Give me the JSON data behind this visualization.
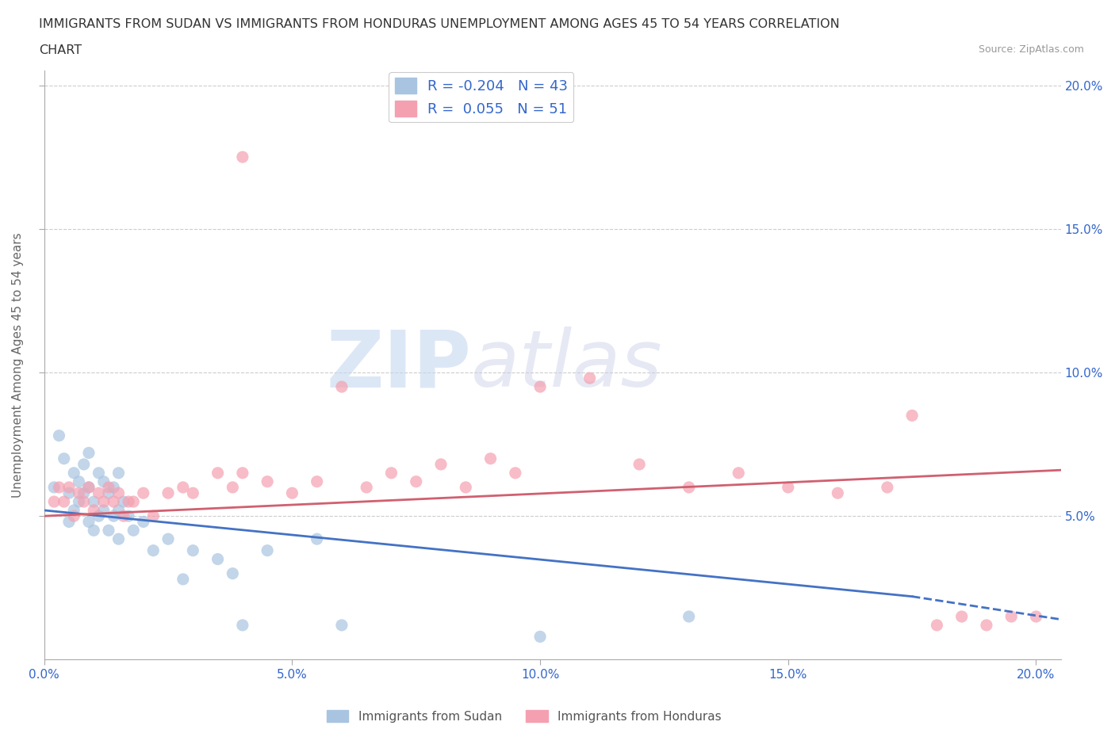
{
  "title_line1": "IMMIGRANTS FROM SUDAN VS IMMIGRANTS FROM HONDURAS UNEMPLOYMENT AMONG AGES 45 TO 54 YEARS CORRELATION",
  "title_line2": "CHART",
  "source": "Source: ZipAtlas.com",
  "ylabel": "Unemployment Among Ages 45 to 54 years",
  "xlim": [
    0.0,
    0.205
  ],
  "ylim": [
    0.0,
    0.205
  ],
  "xticks": [
    0.0,
    0.05,
    0.1,
    0.15,
    0.2
  ],
  "yticks": [
    0.05,
    0.1,
    0.15,
    0.2
  ],
  "xtick_labels": [
    "0.0%",
    "5.0%",
    "10.0%",
    "15.0%",
    "20.0%"
  ],
  "ytick_labels": [
    "5.0%",
    "10.0%",
    "15.0%",
    "20.0%"
  ],
  "sudan_color": "#a8c4e0",
  "honduras_color": "#f4a0b0",
  "sudan_line_color": "#4472c4",
  "honduras_line_color": "#d06070",
  "sudan_R": -0.204,
  "sudan_N": 43,
  "honduras_R": 0.055,
  "honduras_N": 51,
  "watermark_zip": "ZIP",
  "watermark_atlas": "atlas",
  "background_color": "#ffffff",
  "grid_color": "#cccccc",
  "sudan_line_x0": 0.0,
  "sudan_line_y0": 0.052,
  "sudan_line_x1": 0.175,
  "sudan_line_y1": 0.022,
  "sudan_line_dash_x0": 0.175,
  "sudan_line_dash_y0": 0.022,
  "sudan_line_dash_x1": 0.205,
  "sudan_line_dash_y1": 0.014,
  "honduras_line_x0": 0.0,
  "honduras_line_y0": 0.05,
  "honduras_line_x1": 0.205,
  "honduras_line_y1": 0.066,
  "sudan_scatter_x": [
    0.002,
    0.003,
    0.004,
    0.005,
    0.005,
    0.006,
    0.006,
    0.007,
    0.007,
    0.008,
    0.008,
    0.009,
    0.009,
    0.009,
    0.01,
    0.01,
    0.011,
    0.011,
    0.012,
    0.012,
    0.013,
    0.013,
    0.014,
    0.014,
    0.015,
    0.015,
    0.015,
    0.016,
    0.017,
    0.018,
    0.02,
    0.022,
    0.025,
    0.028,
    0.03,
    0.035,
    0.038,
    0.04,
    0.045,
    0.055,
    0.06,
    0.1,
    0.13
  ],
  "sudan_scatter_y": [
    0.06,
    0.078,
    0.07,
    0.058,
    0.048,
    0.065,
    0.052,
    0.062,
    0.055,
    0.068,
    0.058,
    0.072,
    0.06,
    0.048,
    0.055,
    0.045,
    0.065,
    0.05,
    0.062,
    0.052,
    0.058,
    0.045,
    0.06,
    0.05,
    0.065,
    0.052,
    0.042,
    0.055,
    0.05,
    0.045,
    0.048,
    0.038,
    0.042,
    0.028,
    0.038,
    0.035,
    0.03,
    0.012,
    0.038,
    0.042,
    0.012,
    0.008,
    0.015
  ],
  "honduras_scatter_x": [
    0.002,
    0.003,
    0.004,
    0.005,
    0.006,
    0.007,
    0.008,
    0.009,
    0.01,
    0.011,
    0.012,
    0.013,
    0.014,
    0.015,
    0.016,
    0.017,
    0.018,
    0.02,
    0.022,
    0.025,
    0.028,
    0.03,
    0.035,
    0.038,
    0.04,
    0.045,
    0.05,
    0.055,
    0.06,
    0.065,
    0.07,
    0.075,
    0.08,
    0.085,
    0.09,
    0.095,
    0.1,
    0.11,
    0.12,
    0.13,
    0.14,
    0.15,
    0.16,
    0.17,
    0.175,
    0.18,
    0.185,
    0.19,
    0.195,
    0.2,
    0.04
  ],
  "honduras_scatter_y": [
    0.055,
    0.06,
    0.055,
    0.06,
    0.05,
    0.058,
    0.055,
    0.06,
    0.052,
    0.058,
    0.055,
    0.06,
    0.055,
    0.058,
    0.05,
    0.055,
    0.055,
    0.058,
    0.05,
    0.058,
    0.06,
    0.058,
    0.065,
    0.06,
    0.065,
    0.062,
    0.058,
    0.062,
    0.095,
    0.06,
    0.065,
    0.062,
    0.068,
    0.06,
    0.07,
    0.065,
    0.095,
    0.098,
    0.068,
    0.06,
    0.065,
    0.06,
    0.058,
    0.06,
    0.085,
    0.012,
    0.015,
    0.012,
    0.015,
    0.015,
    0.175
  ]
}
